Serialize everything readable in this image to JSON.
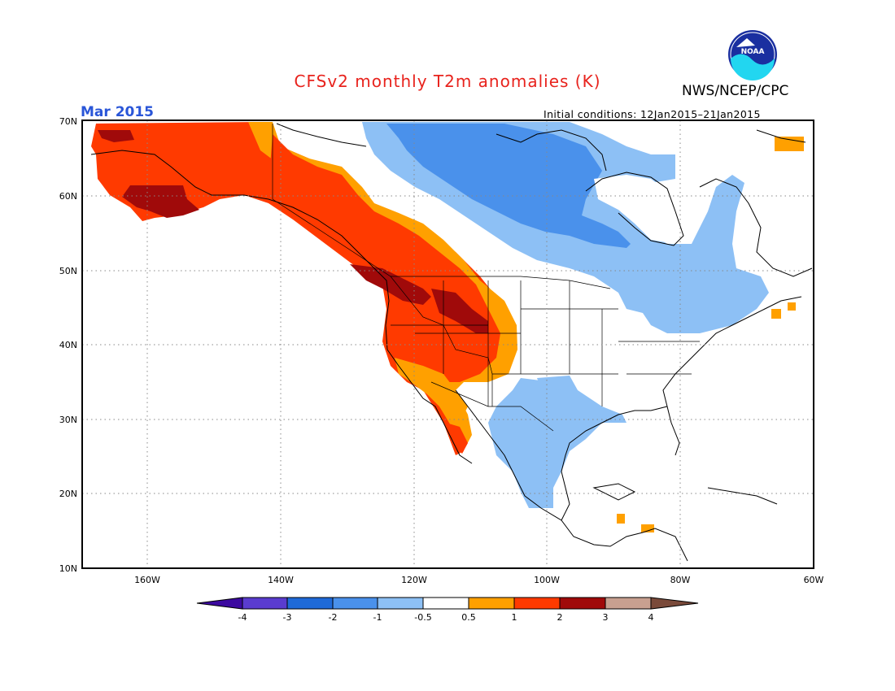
{
  "header": {
    "title": "CFSv2 monthly T2m anomalies (K)",
    "title_color": "#e8231d",
    "agency": "NWS/NCEP/CPC",
    "logo_text": "NOAA",
    "map_date": "Mar 2015",
    "map_date_color": "#2a56d8",
    "initial_conditions": "Initial conditions: 12Jan2015–21Jan2015"
  },
  "map": {
    "region": "North America",
    "lat_range": [
      10,
      70
    ],
    "lon_range": [
      -170,
      -60
    ],
    "lat_ticks": [
      "70N",
      "60N",
      "50N",
      "40N",
      "30N",
      "20N",
      "10N"
    ],
    "lon_ticks": [
      "160W",
      "140W",
      "120W",
      "100W",
      "80W",
      "60W"
    ],
    "grid": "dotted"
  },
  "legend": {
    "tick_labels": [
      "-4",
      "-3",
      "-2",
      "-1",
      "-0.5",
      "0.5",
      "1",
      "2",
      "3",
      "4"
    ],
    "colors": {
      "below_-4": "#3c0aa0",
      "-4_to_-3": "#5a3ccf",
      "-3_to_-2": "#1f6ad8",
      "-2_to_-1": "#4a91eb",
      "-1_to_-0.5": "#8dc0f5",
      "-0.5_to_0.5": "#ffffff",
      "0.5_to_1": "#ffa000",
      "1_to_2": "#ff3a00",
      "2_to_3": "#a00a0a",
      "3_to_4": "#c8a090",
      "above_4": "#7a4a3a"
    }
  }
}
